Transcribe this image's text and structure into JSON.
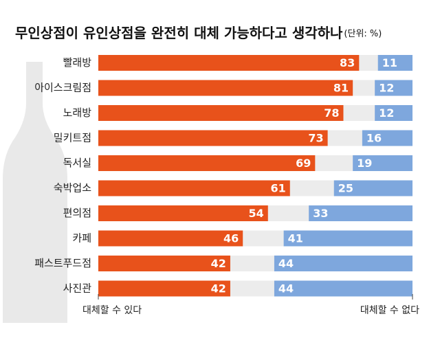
{
  "chart_data": {
    "type": "diverging-bar",
    "title": "무인상점이 유인상점을 완전히 대체 가능하다고 생각하나",
    "unit": "(단위: %)",
    "categories": [
      "빨래방",
      "아이스크림점",
      "노래방",
      "밀키트점",
      "독서실",
      "숙박업소",
      "편의점",
      "카페",
      "패스트푸드점",
      "사진관"
    ],
    "series": [
      {
        "name": "대체할 수 있다",
        "color": "#e8521b",
        "values": [
          83,
          81,
          78,
          73,
          69,
          61,
          54,
          46,
          42,
          42
        ]
      },
      {
        "name": "대체할 수 없다",
        "color": "#7ea7dd",
        "values": [
          11,
          12,
          12,
          16,
          19,
          25,
          33,
          41,
          44,
          44
        ]
      }
    ],
    "xlim": [
      0,
      100
    ]
  }
}
